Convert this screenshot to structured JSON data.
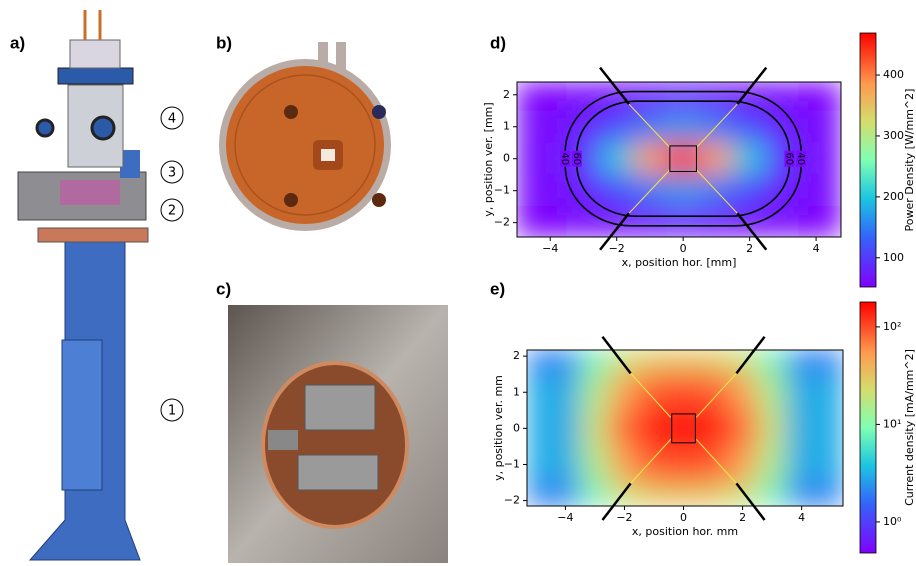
{
  "figure": {
    "panel_labels": [
      "a)",
      "b)",
      "c)",
      "d)",
      "e)"
    ],
    "callouts": [
      "4",
      "3",
      "2",
      "1"
    ]
  },
  "chart_data": [
    {
      "type": "heatmap",
      "xlabel": "x, position hor. [mm]",
      "ylabel": "y, position ver. [mm]",
      "colorbar_label": "Power Density [W/mm^2]",
      "x": [
        -4,
        -3,
        -2,
        -1,
        0,
        1,
        2,
        3,
        4
      ],
      "y": [
        2,
        1,
        0,
        -1,
        -2
      ],
      "values": [
        [
          55,
          58,
          62,
          66,
          70,
          66,
          62,
          58,
          55
        ],
        [
          58,
          75,
          110,
          150,
          170,
          150,
          110,
          75,
          58
        ],
        [
          60,
          95,
          200,
          380,
          465,
          380,
          200,
          95,
          60
        ],
        [
          58,
          75,
          110,
          150,
          170,
          150,
          110,
          75,
          58
        ],
        [
          55,
          58,
          62,
          66,
          70,
          66,
          62,
          58,
          55
        ]
      ],
      "xlim": [
        -5.0,
        4.75
      ],
      "ylim": [
        -2.45,
        2.4
      ],
      "xticks": [
        {
          "value": -4,
          "label": "−4"
        },
        {
          "value": -2,
          "label": "−2"
        },
        0,
        2,
        4
      ],
      "yticks": [
        {
          "value": -2,
          "label": "−2"
        },
        {
          "value": -1,
          "label": "−1"
        },
        0,
        1,
        2
      ],
      "clim": [
        52,
        469
      ],
      "cticks": [
        100,
        200,
        300,
        400
      ],
      "log_scale": false,
      "colormap": "rainbow",
      "contour_levels": [
        40,
        60
      ]
    },
    {
      "type": "heatmap",
      "xlabel": "x, position hor. mm",
      "ylabel": "y, position ver. mm",
      "colorbar_label": "Current density [mA/mm^2]",
      "x": [
        -4,
        -3,
        -2,
        -1,
        0,
        1,
        2,
        3,
        4
      ],
      "y": [
        2,
        1,
        0,
        -1,
        -2
      ],
      "values": [
        [
          2,
          8,
          20,
          30,
          32,
          30,
          20,
          8,
          2
        ],
        [
          3,
          15,
          50,
          90,
          100,
          90,
          50,
          15,
          3
        ],
        [
          3,
          20,
          80,
          150,
          160,
          150,
          80,
          20,
          3
        ],
        [
          3,
          15,
          50,
          90,
          100,
          90,
          50,
          15,
          3
        ],
        [
          2,
          8,
          20,
          30,
          32,
          30,
          20,
          8,
          2
        ]
      ],
      "xlim": [
        -5.3,
        5.4
      ],
      "ylim": [
        -2.15,
        2.17
      ],
      "xticks": [
        {
          "value": -4,
          "label": "−4"
        },
        {
          "value": -2,
          "label": "−2"
        },
        0,
        2,
        4
      ],
      "yticks": [
        {
          "value": -2,
          "label": "−2"
        },
        {
          "value": -1,
          "label": "−1"
        },
        0,
        1,
        2
      ],
      "clim": [
        0.48,
        180
      ],
      "cticks": [
        {
          "value": 1,
          "label": "10⁰"
        },
        {
          "value": 10,
          "label": "10¹"
        },
        {
          "value": 100,
          "label": "10²"
        }
      ],
      "log_scale": true,
      "colormap": "rainbow"
    }
  ]
}
